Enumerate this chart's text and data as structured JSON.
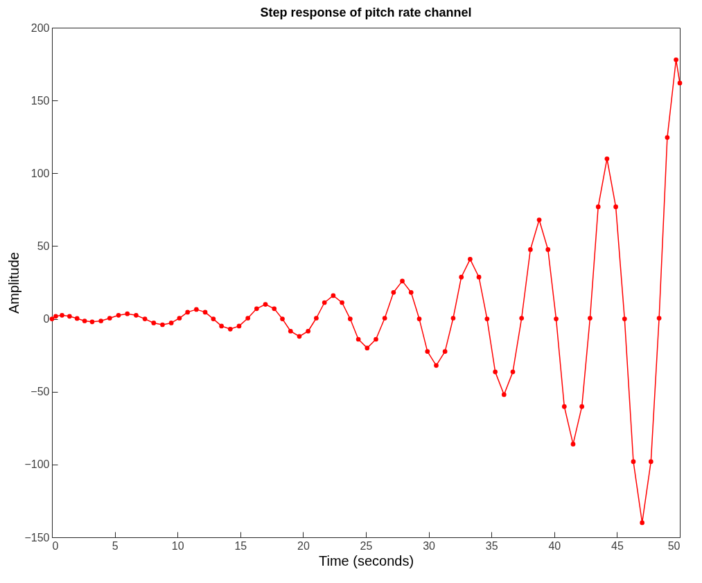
{
  "chart_data": {
    "type": "line",
    "title": "Step response of pitch rate channel",
    "xlabel": "Time (seconds)",
    "ylabel": "Amplitude",
    "x": [
      0,
      0.3,
      0.8,
      1.4,
      2.0,
      2.6,
      3.2,
      3.9,
      4.6,
      5.3,
      6,
      6.7,
      7.4,
      8.1,
      8.8,
      9.5,
      10.15,
      10.8,
      11.5,
      12.2,
      12.85,
      13.5,
      14.2,
      14.9,
      15.6,
      16.3,
      17,
      17.7,
      18.35,
      19.0,
      19.7,
      20.4,
      21.05,
      21.7,
      22.4,
      23.1,
      23.75,
      24.4,
      25.1,
      25.8,
      26.5,
      27.2,
      27.9,
      28.6,
      29.25,
      29.9,
      30.6,
      31.3,
      31.95,
      32.6,
      33.3,
      34.0,
      34.65,
      35.3,
      36,
      36.7,
      37.4,
      38.1,
      38.8,
      39.5,
      40.15,
      40.8,
      41.5,
      42.2,
      42.85,
      43.5,
      44.2,
      44.9,
      45.6,
      46.3,
      47,
      47.7,
      48.35,
      49.0,
      49.7,
      50
    ],
    "series": [
      {
        "color": "#ff0000",
        "values": [
          0,
          1.8,
          2.5,
          1.8,
          0.3,
          -1.4,
          -2,
          -1.4,
          0.5,
          2.5,
          3.5,
          2.5,
          0,
          -2.8,
          -4,
          -2.8,
          0.5,
          4.6,
          6.5,
          4.6,
          0,
          -4.9,
          -7,
          -4.9,
          0.5,
          7,
          10,
          7,
          0,
          -8.4,
          -12,
          -8.4,
          0.5,
          11.2,
          16,
          11.2,
          0,
          -14,
          -20,
          -14,
          0.5,
          18.2,
          26,
          18.2,
          0,
          -22.4,
          -32,
          -22.4,
          0.5,
          28.7,
          41,
          28.7,
          0,
          -36.4,
          -52,
          -36.4,
          0.5,
          47.6,
          68,
          47.6,
          0,
          -60.2,
          -86,
          -60.2,
          0.5,
          77,
          110,
          77,
          0,
          -98,
          -140,
          -98,
          0.5,
          124.6,
          178,
          162
        ]
      }
    ],
    "xlim": [
      0,
      50
    ],
    "xticks": [
      0,
      5,
      10,
      15,
      20,
      25,
      30,
      35,
      40,
      45,
      50
    ],
    "ylim": [
      -150,
      200
    ],
    "yticks": [
      -150,
      -100,
      -50,
      0,
      50,
      100,
      150,
      200
    ],
    "marker": "circle",
    "line_style": "solid"
  }
}
